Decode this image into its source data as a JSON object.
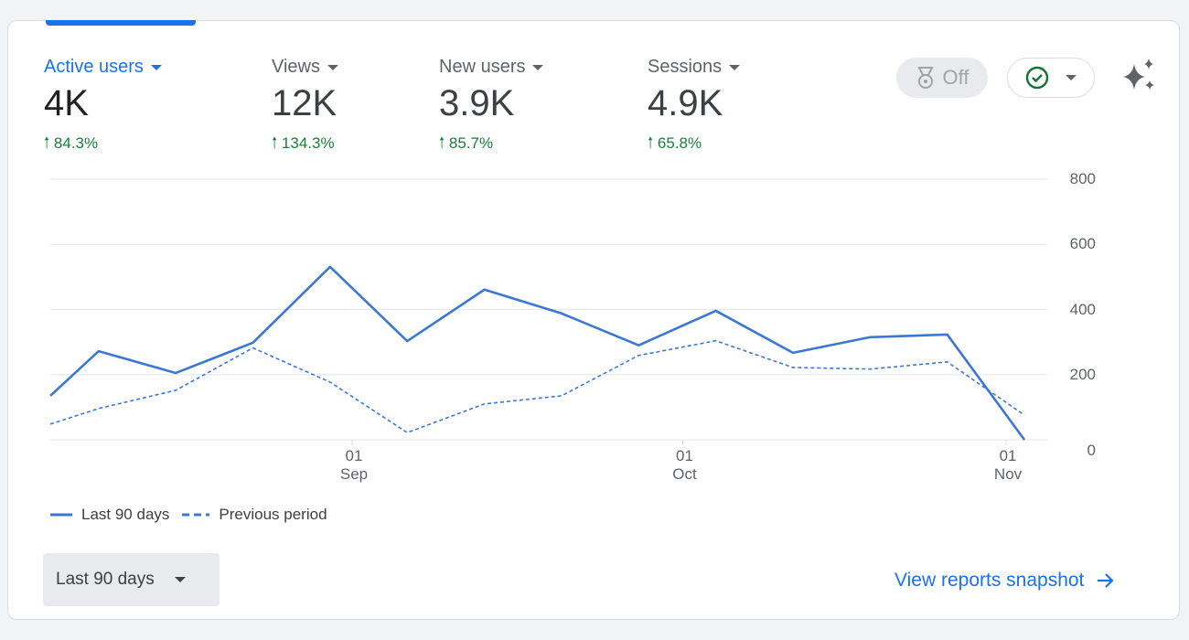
{
  "metrics": [
    {
      "label": "Active users",
      "value": "4K",
      "change": "84.3%",
      "active": true
    },
    {
      "label": "Views",
      "value": "12K",
      "change": "134.3%"
    },
    {
      "label": "New users",
      "value": "3.9K",
      "change": "85.7%"
    },
    {
      "label": "Sessions",
      "value": "4.9K",
      "change": "65.8%"
    }
  ],
  "controls": {
    "off_label": "Off",
    "off_icon": "medal-icon",
    "check_icon": "check-circle-icon",
    "ai_icon": "sparkle-icon"
  },
  "colors": {
    "accent": "#1a73e8",
    "positive": "#188038",
    "line": "#3a78d4"
  },
  "chart_data": {
    "type": "line",
    "ylim": [
      0,
      800
    ],
    "yticks": [
      0,
      200,
      400,
      600,
      800
    ],
    "xticks": [
      {
        "date": "2024-09-01",
        "day": "01",
        "month": "Sep"
      },
      {
        "date": "2024-10-01",
        "day": "01",
        "month": "Oct"
      },
      {
        "date": "2024-11-01",
        "day": "01",
        "month": "Nov"
      }
    ],
    "x": [
      "2024-08-05",
      "2024-08-09",
      "2024-08-16",
      "2024-08-23",
      "2024-08-30",
      "2024-09-06",
      "2024-09-13",
      "2024-09-20",
      "2024-09-27",
      "2024-10-04",
      "2024-10-11",
      "2024-10-18",
      "2024-10-25",
      "2024-11-01"
    ],
    "grid": true,
    "legend": "bottom-left",
    "series": [
      {
        "name": "Last 90 days",
        "style": "solid",
        "values": [
          135,
          272,
          205,
          298,
          531,
          303,
          461,
          388,
          290,
          396,
          267,
          315,
          323,
          0
        ]
      },
      {
        "name": "Previous period",
        "style": "dashed",
        "values": [
          48,
          96,
          152,
          282,
          177,
          22,
          110,
          135,
          259,
          304,
          222,
          217,
          239,
          76
        ]
      }
    ]
  },
  "footer": {
    "range_label": "Last 90 days",
    "snapshot_link": "View reports snapshot"
  }
}
